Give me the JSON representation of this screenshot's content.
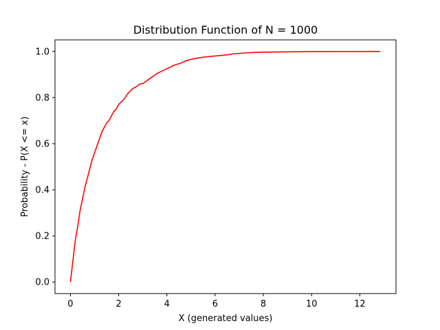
{
  "chart_data": {
    "type": "line",
    "title": "Distribution Function of N = 1000",
    "xlabel": "X (generated values)",
    "ylabel": "Probability - P(X <= x)",
    "xlim": [
      -0.64,
      13.5
    ],
    "ylim": [
      -0.05,
      1.05
    ],
    "xticks": [
      0,
      2,
      4,
      6,
      8,
      10,
      12
    ],
    "yticks": [
      0.0,
      0.2,
      0.4,
      0.6,
      0.8,
      1.0
    ],
    "xtick_labels": [
      "0",
      "2",
      "4",
      "6",
      "8",
      "10",
      "12"
    ],
    "ytick_labels": [
      "0.0",
      "0.2",
      "0.4",
      "0.6",
      "0.8",
      "1.0"
    ],
    "grid": false,
    "series": [
      {
        "color": "#ff0000",
        "x": [
          0,
          0.1,
          0.2,
          0.3,
          0.4,
          0.5,
          0.6,
          0.7,
          0.8,
          0.9,
          1.0,
          1.1,
          1.2,
          1.3,
          1.4,
          1.5,
          1.6,
          1.7,
          1.8,
          1.9,
          2.0,
          2.2,
          2.4,
          2.6,
          2.7,
          2.9,
          3.0,
          3.2,
          3.4,
          3.6,
          3.8,
          4.0,
          4.3,
          4.6,
          4.8,
          5.0,
          5.2,
          5.5,
          6.0,
          6.5,
          6.8,
          7.2,
          7.5,
          8.0,
          9.0,
          10.0,
          12.0,
          12.85
        ],
        "y": [
          0.0,
          0.09,
          0.18,
          0.24,
          0.31,
          0.36,
          0.41,
          0.45,
          0.49,
          0.53,
          0.56,
          0.59,
          0.62,
          0.65,
          0.67,
          0.69,
          0.7,
          0.72,
          0.74,
          0.75,
          0.77,
          0.79,
          0.82,
          0.84,
          0.845,
          0.86,
          0.86,
          0.875,
          0.89,
          0.905,
          0.915,
          0.925,
          0.94,
          0.95,
          0.96,
          0.965,
          0.97,
          0.975,
          0.98,
          0.985,
          0.99,
          0.993,
          0.995,
          0.997,
          0.998,
          0.999,
          0.9995,
          1.0
        ]
      }
    ]
  }
}
